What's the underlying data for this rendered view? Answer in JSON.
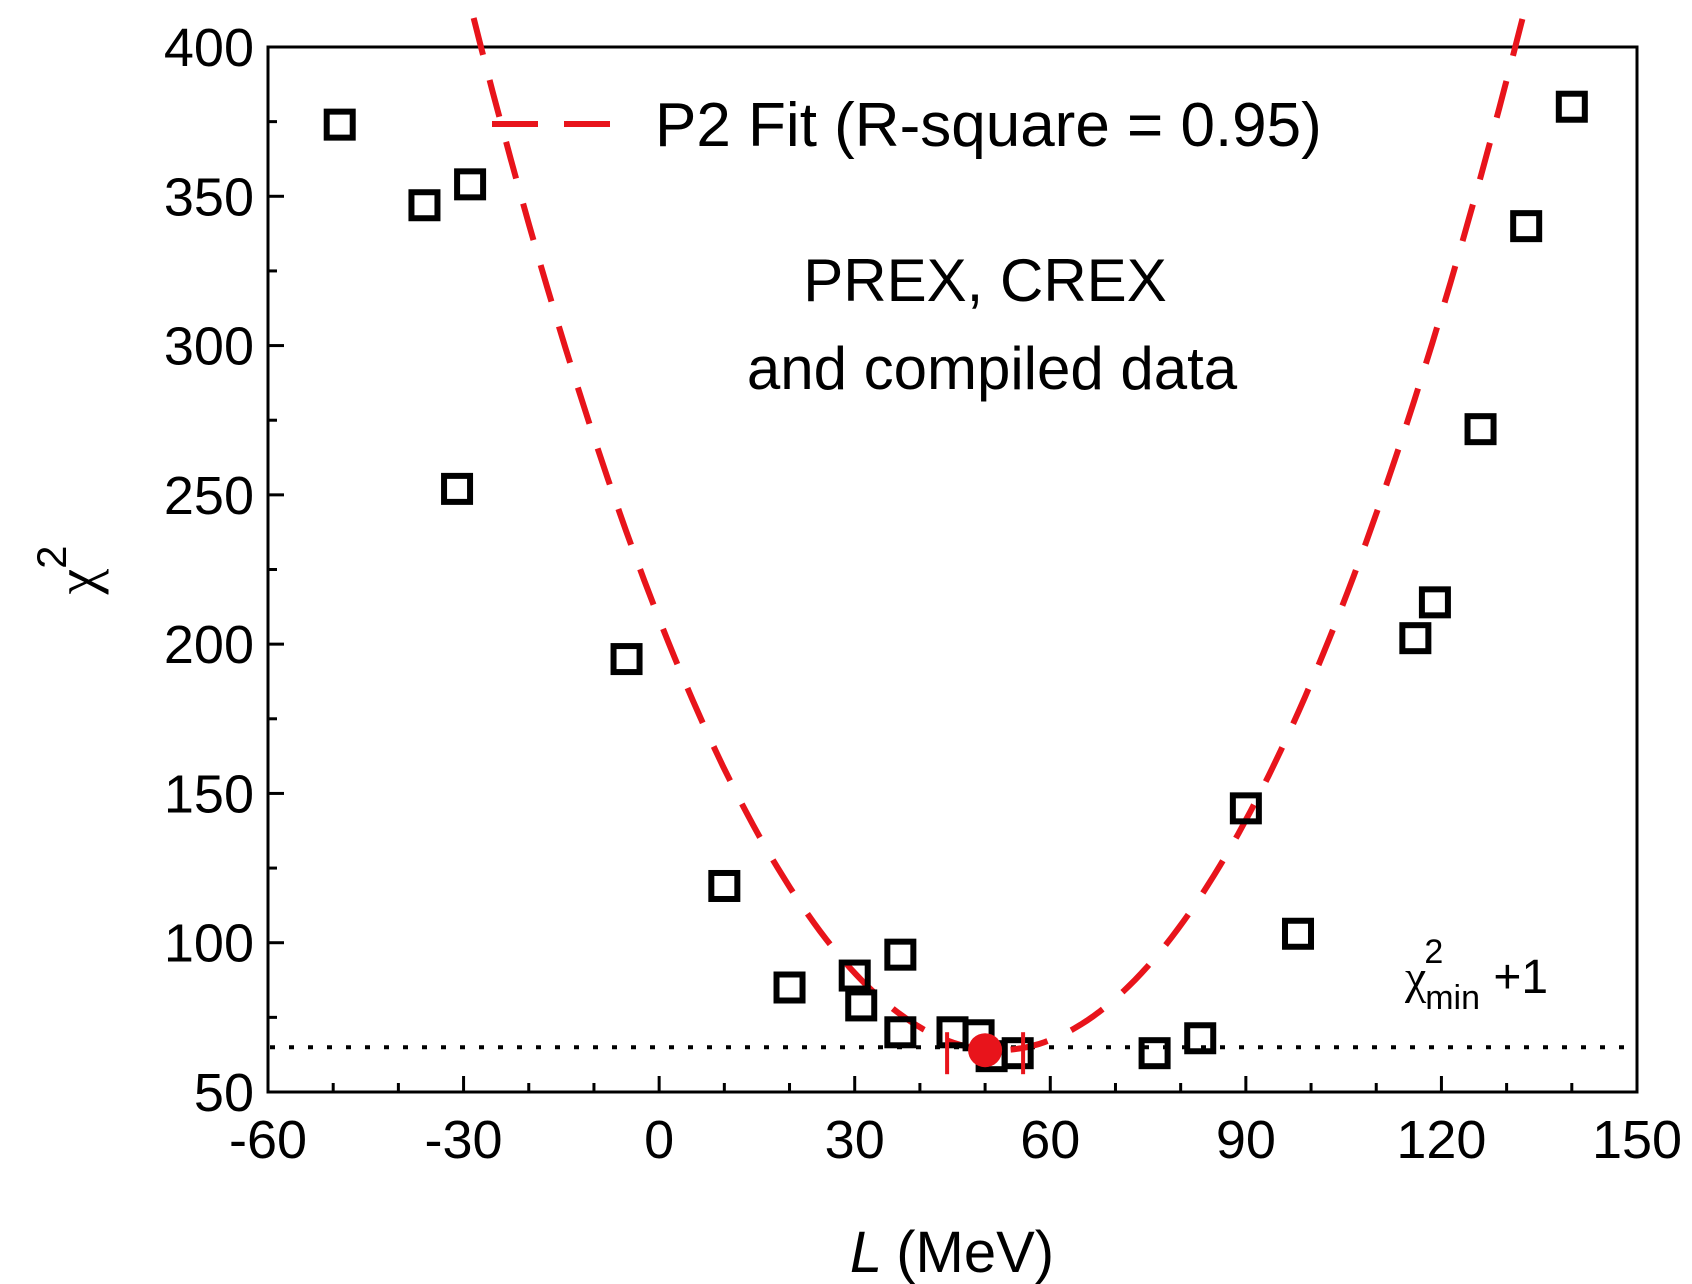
{
  "chart_data": {
    "type": "scatter",
    "xlabel_italic": "L",
    "xlabel_unit": "(MeV)",
    "ylabel_base": "χ",
    "ylabel_sup": "2",
    "xlim": [
      -60,
      150
    ],
    "ylim": [
      50,
      400
    ],
    "xticks": [
      -60,
      -30,
      0,
      30,
      60,
      90,
      120,
      150
    ],
    "yticks": [
      50,
      100,
      150,
      200,
      250,
      300,
      350,
      400
    ],
    "x_minor_step": 10,
    "y_minor_step": 25,
    "grid": false,
    "annotations": {
      "dataset_line1": "PREX, CREX",
      "dataset_line2": "and compiled data",
      "threshold_base": "χ",
      "threshold_sup": "2",
      "threshold_sub": "min",
      "threshold_suffix": " +1"
    },
    "legend": {
      "position": "top-center",
      "entries": [
        {
          "label": "P2 Fit (R-square = 0.95)",
          "color": "#e8141b",
          "style": "dashed"
        }
      ]
    },
    "series": [
      {
        "marker": "open-square",
        "color": "#000000",
        "points": [
          {
            "x": -49,
            "y": 374
          },
          {
            "x": -36,
            "y": 347
          },
          {
            "x": -29,
            "y": 354
          },
          {
            "x": -31,
            "y": 252
          },
          {
            "x": -5,
            "y": 195
          },
          {
            "x": 10,
            "y": 119
          },
          {
            "x": 20,
            "y": 85
          },
          {
            "x": 30,
            "y": 89
          },
          {
            "x": 31,
            "y": 79
          },
          {
            "x": 37,
            "y": 96
          },
          {
            "x": 37,
            "y": 70
          },
          {
            "x": 45,
            "y": 70
          },
          {
            "x": 49,
            "y": 69
          },
          {
            "x": 51,
            "y": 62
          },
          {
            "x": 55,
            "y": 63
          },
          {
            "x": 76,
            "y": 63
          },
          {
            "x": 83,
            "y": 68
          },
          {
            "x": 90,
            "y": 145
          },
          {
            "x": 98,
            "y": 103
          },
          {
            "x": 116,
            "y": 202
          },
          {
            "x": 119,
            "y": 214
          },
          {
            "x": 126,
            "y": 272
          },
          {
            "x": 133,
            "y": 340
          },
          {
            "x": 140,
            "y": 380
          }
        ]
      },
      {
        "name": "P2 Fit (R-square = 0.95)",
        "type": "line",
        "style": "dashed",
        "color": "#e8141b",
        "fit": {
          "a": 0.0534,
          "x0": 52,
          "y0": 64
        },
        "x_range": [
          -46,
          140
        ]
      },
      {
        "marker": "filled-circle",
        "color": "#e8141b",
        "points": [
          {
            "x": 50,
            "y": 64
          }
        ]
      },
      {
        "type": "hline",
        "style": "dotted",
        "color": "#000000",
        "y": 65
      }
    ]
  }
}
